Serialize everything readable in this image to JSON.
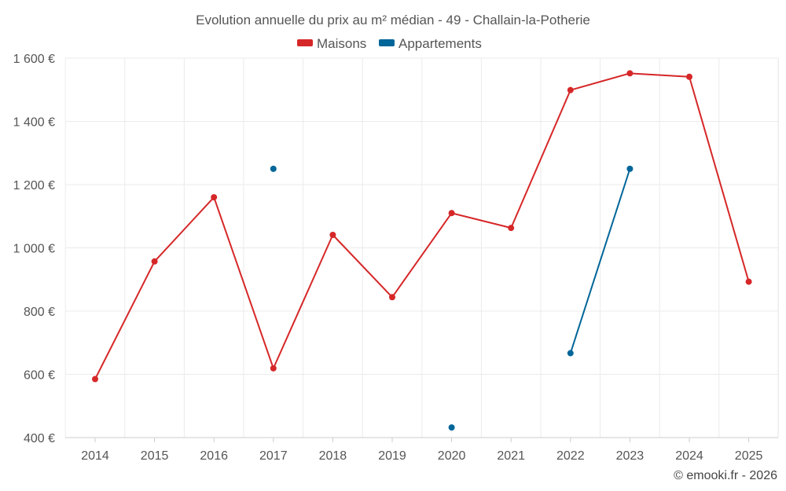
{
  "chart_data": {
    "type": "line",
    "title": "Evolution annuelle du prix au m² médian - 49 - Challain-la-Potherie",
    "categories": [
      "2014",
      "2015",
      "2016",
      "2017",
      "2018",
      "2019",
      "2020",
      "2021",
      "2022",
      "2023",
      "2024",
      "2025"
    ],
    "y_ticks": [
      "400 €",
      "600 €",
      "800 €",
      "1 000 €",
      "1 200 €",
      "1 400 €",
      "1 600 €"
    ],
    "ylim": [
      400,
      1600
    ],
    "y_tick_values": [
      400,
      600,
      800,
      1000,
      1200,
      1400,
      1600
    ],
    "grid": true,
    "legend_position": "top-center",
    "series": [
      {
        "name": "Maisons",
        "color": "#d62728",
        "values": [
          585,
          957,
          1160,
          619,
          1041,
          844,
          1110,
          1063,
          1499,
          1552,
          1541,
          893
        ]
      },
      {
        "name": "Appartements",
        "color": "#006699",
        "values": [
          null,
          null,
          null,
          1250,
          null,
          null,
          432,
          null,
          667,
          1250,
          null,
          null
        ]
      }
    ],
    "credit": "© emooki.fr - 2026"
  }
}
